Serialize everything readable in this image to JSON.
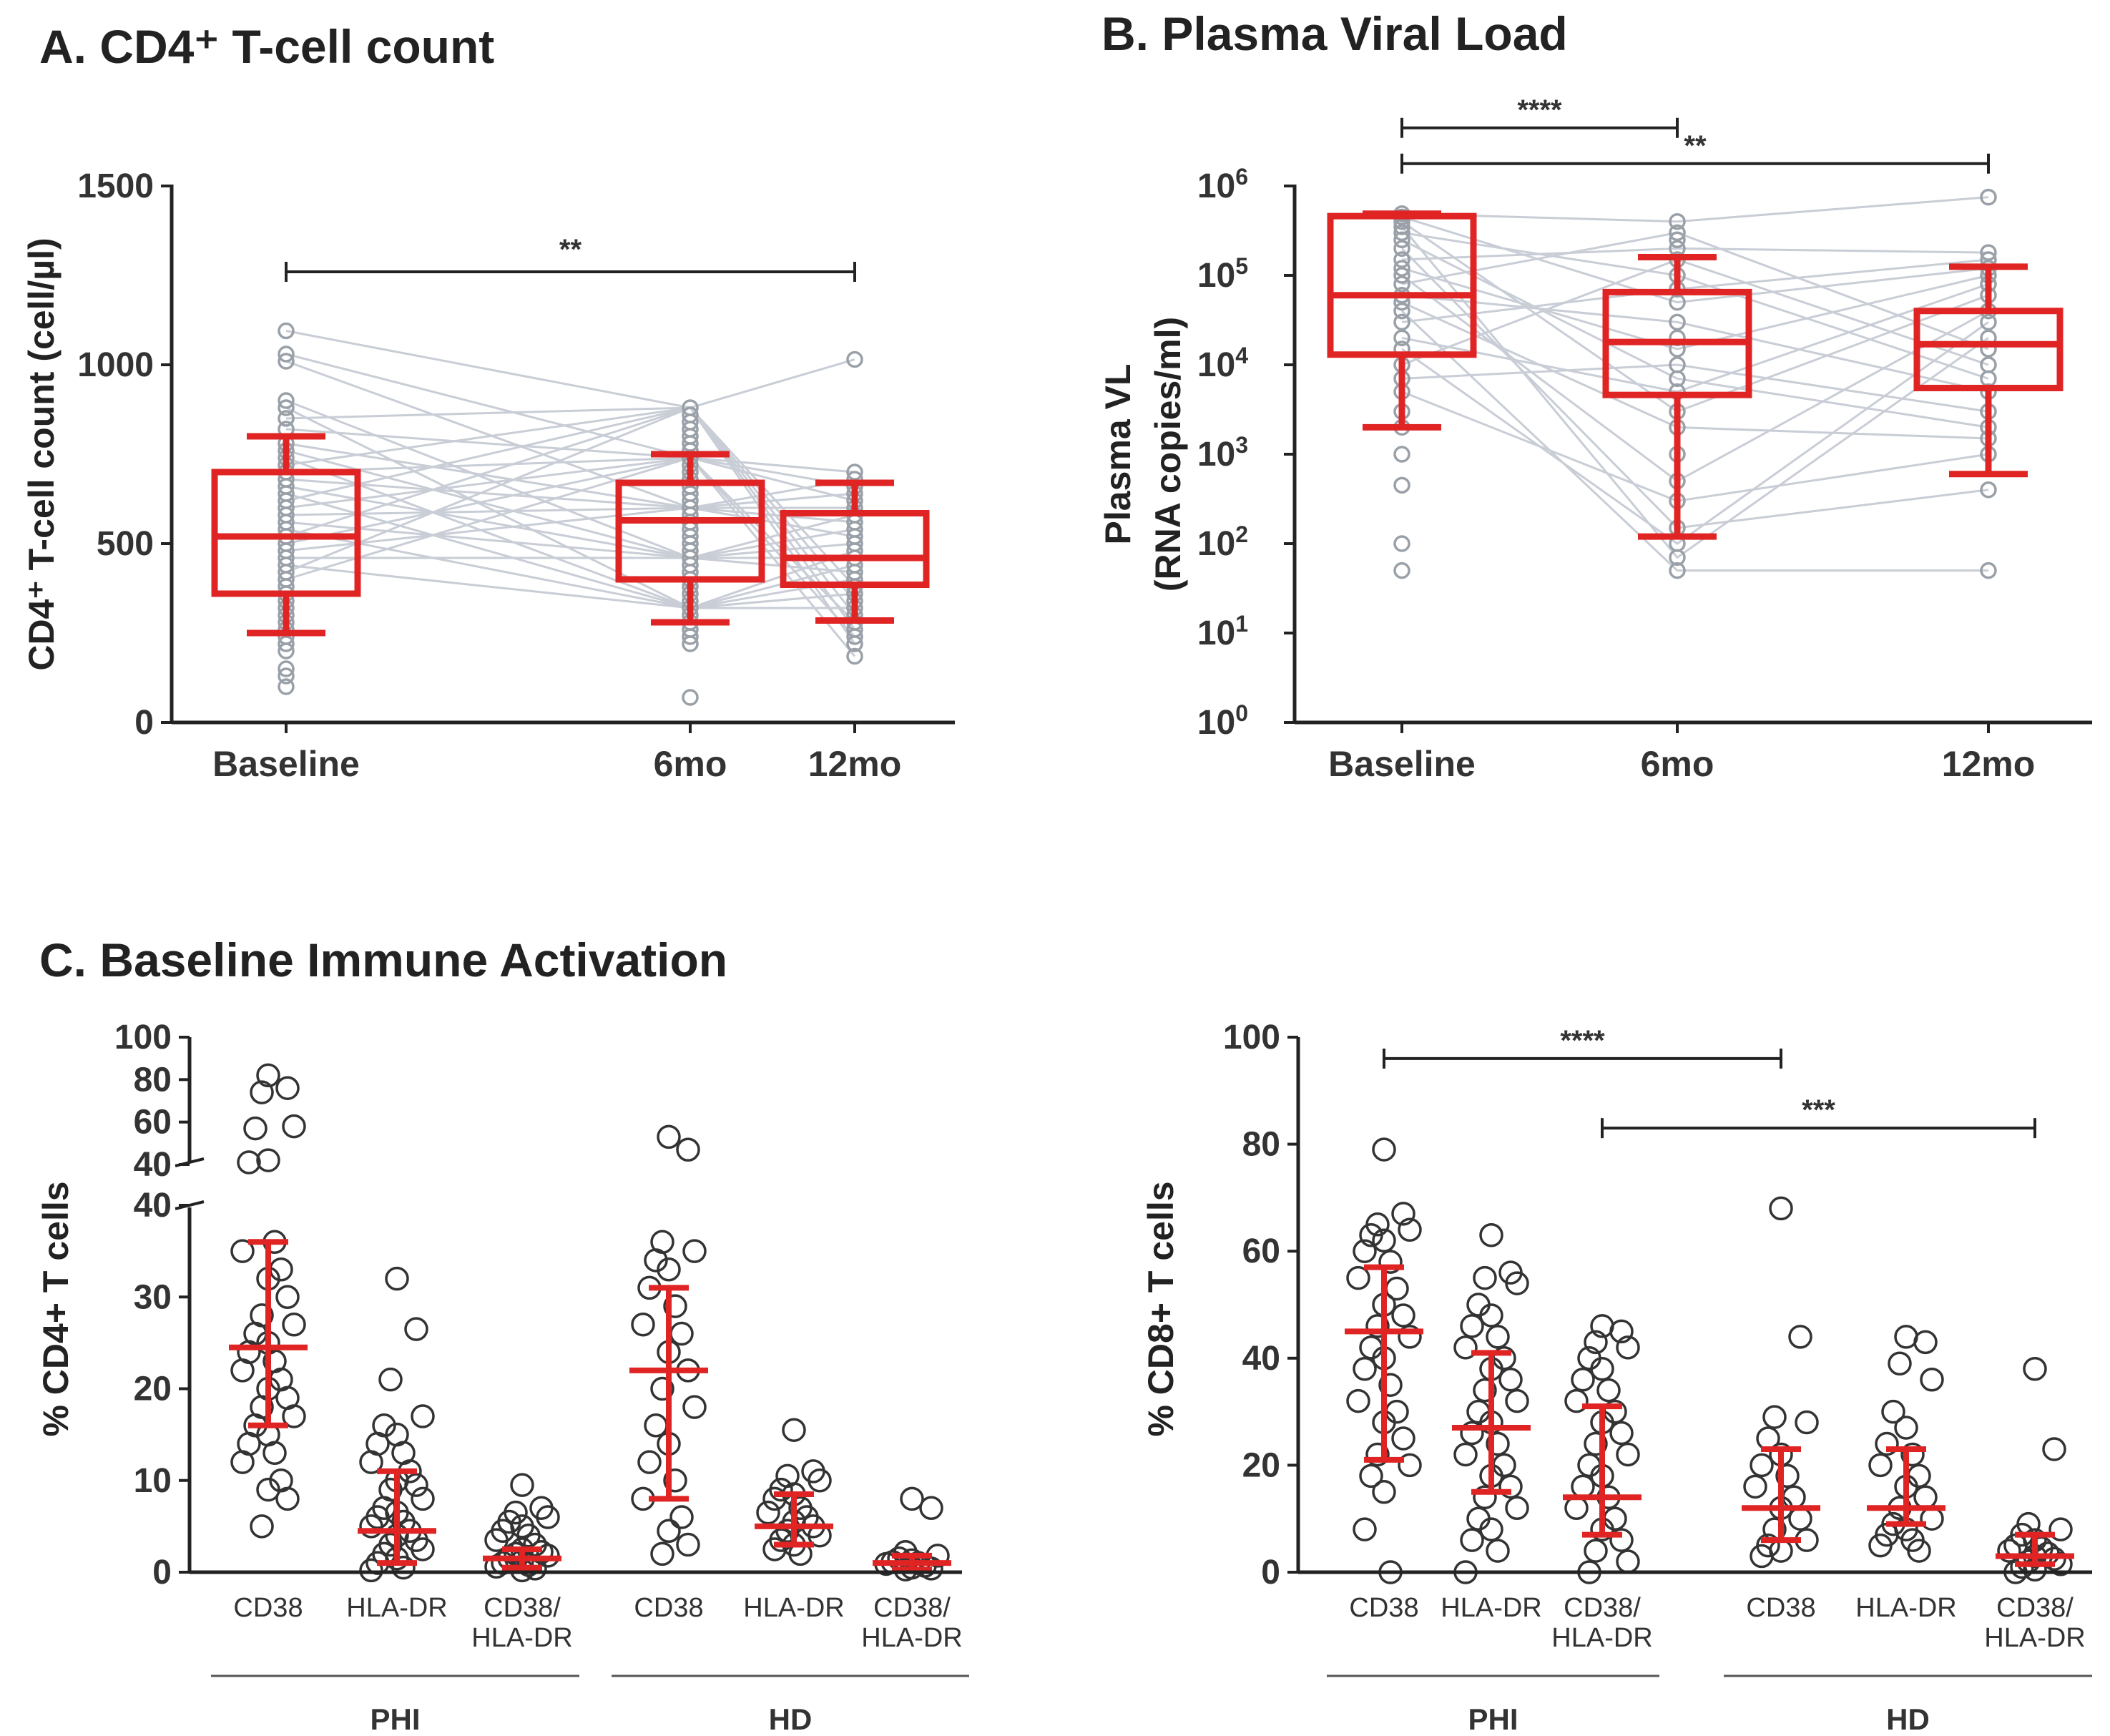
{
  "colors": {
    "box": "#e02424",
    "line": "#c8cdd6",
    "point": "#9aa0a8",
    "axis": "#222222",
    "hollow": "#333333"
  },
  "chart_data": [
    {
      "id": "A",
      "type": "box",
      "title": "A. CD4⁺ T-cell count",
      "ylabel": "CD4⁺ T-cell count (cell/µl)",
      "categories": [
        "Baseline",
        "6mo",
        "12mo"
      ],
      "yticks": [
        "0",
        "500",
        "1000",
        "1500"
      ],
      "ylim": [
        0,
        1500
      ],
      "boxes": [
        {
          "category": "Baseline",
          "whisker_low": 250,
          "q1": 360,
          "median": 520,
          "q3": 700,
          "whisker_high": 800
        },
        {
          "category": "6mo",
          "whisker_low": 280,
          "q1": 400,
          "median": 565,
          "q3": 670,
          "whisker_high": 750
        },
        {
          "category": "12mo",
          "whisker_low": 285,
          "q1": 385,
          "median": 460,
          "q3": 585,
          "whisker_high": 670
        }
      ],
      "points": {
        "Baseline": [
          1095,
          1030,
          1010,
          900,
          880,
          850,
          820,
          780,
          760,
          740,
          720,
          700,
          680,
          660,
          640,
          620,
          600,
          580,
          560,
          540,
          520,
          500,
          480,
          460,
          440,
          420,
          400,
          380,
          360,
          340,
          320,
          300,
          280,
          260,
          240,
          220,
          200,
          150,
          130,
          100
        ],
        "6mo": [
          880,
          860,
          840,
          820,
          800,
          780,
          760,
          740,
          720,
          700,
          680,
          660,
          640,
          620,
          600,
          580,
          560,
          540,
          520,
          500,
          480,
          460,
          440,
          420,
          400,
          380,
          360,
          340,
          320,
          300,
          280,
          260,
          240,
          220,
          70
        ],
        "12mo": [
          1015,
          700,
          680,
          660,
          640,
          620,
          600,
          580,
          560,
          540,
          520,
          500,
          480,
          460,
          440,
          420,
          400,
          380,
          360,
          340,
          320,
          300,
          280,
          260,
          240,
          220,
          185
        ]
      },
      "comparisons": [
        {
          "from": "Baseline",
          "to": "12mo",
          "label": "**",
          "level": 1260
        }
      ]
    },
    {
      "id": "B",
      "type": "box",
      "scale": "log",
      "title": "B. Plasma Viral Load",
      "ylabel": [
        "Plasma VL",
        "(RNA copies/ml)"
      ],
      "categories": [
        "Baseline",
        "6mo",
        "12mo"
      ],
      "yticks": [
        {
          "exp": 0,
          "base": "10",
          "sup": "0"
        },
        {
          "exp": 1,
          "base": "10",
          "sup": "1"
        },
        {
          "exp": 2,
          "base": "10",
          "sup": "2"
        },
        {
          "exp": 3,
          "base": "10",
          "sup": "3"
        },
        {
          "exp": 4,
          "base": "10",
          "sup": "4"
        },
        {
          "exp": 5,
          "base": "10",
          "sup": "5"
        },
        {
          "exp": 6,
          "base": "10",
          "sup": "6"
        }
      ],
      "ylim_log10": [
        0,
        6
      ],
      "boxes": [
        {
          "category": "Baseline",
          "whisker_low": 2000,
          "q1": 13000,
          "median": 60000,
          "q3": 460000,
          "whisker_high": 490000
        },
        {
          "category": "6mo",
          "whisker_low": 120,
          "q1": 4600,
          "median": 18000,
          "q3": 65000,
          "whisker_high": 160000
        },
        {
          "category": "12mo",
          "whisker_low": 600,
          "q1": 5500,
          "median": 17000,
          "q3": 40000,
          "whisker_high": 125000
        }
      ],
      "points": {
        "Baseline": [
          490000,
          450000,
          400000,
          350000,
          300000,
          250000,
          200000,
          150000,
          120000,
          100000,
          80000,
          60000,
          50000,
          40000,
          30000,
          20000,
          15000,
          10000,
          7000,
          5000,
          3000,
          2000,
          1000,
          450,
          100,
          50
        ],
        "6mo": [
          400000,
          300000,
          250000,
          200000,
          150000,
          100000,
          70000,
          50000,
          30000,
          20000,
          15000,
          10000,
          7000,
          5000,
          3000,
          2000,
          1000,
          500,
          300,
          150,
          100,
          70,
          50
        ],
        "12mo": [
          750000,
          180000,
          150000,
          120000,
          100000,
          80000,
          60000,
          40000,
          30000,
          20000,
          15000,
          10000,
          7000,
          5000,
          3000,
          2000,
          1500,
          1000,
          400,
          50
        ]
      },
      "comparisons": [
        {
          "from": "Baseline",
          "to": "6mo",
          "label": "****",
          "level_log10": 6.65
        },
        {
          "from": "Baseline",
          "to": "12mo",
          "label": "**",
          "level_log10": 6.25
        }
      ]
    },
    {
      "id": "C1",
      "type": "scatter",
      "title": "C. Baseline Immune Activation",
      "ylabel": "% CD4+ T cells",
      "categories": [
        "CD38",
        "HLA-DR",
        "CD38/\nHLA-DR",
        "CD38",
        "HLA-DR",
        "CD38/\nHLA-DR"
      ],
      "groups": [
        {
          "name": "PHI",
          "span": [
            0,
            2
          ]
        },
        {
          "name": "HD",
          "span": [
            3,
            5
          ]
        }
      ],
      "yticks_lower": [
        "0",
        "10",
        "20",
        "30",
        "40"
      ],
      "yticks_upper": [
        "40",
        "60",
        "80",
        "100"
      ],
      "ylim_lower": [
        0,
        40
      ],
      "ylim_upper": [
        40,
        100
      ],
      "summary": [
        {
          "median": 24.5,
          "low": 16,
          "high": 36
        },
        {
          "median": 4.5,
          "low": 1,
          "high": 11
        },
        {
          "median": 1.5,
          "low": 0.5,
          "high": 2.5
        },
        {
          "median": 22,
          "low": 8,
          "high": 31
        },
        {
          "median": 5,
          "low": 3,
          "high": 8.5
        },
        {
          "median": 1,
          "low": 0.3,
          "high": 1.8
        }
      ],
      "points": [
        [
          82,
          76,
          74,
          58,
          57,
          42,
          41,
          36,
          35,
          33,
          32,
          30,
          28,
          27,
          26,
          25,
          24,
          23,
          22,
          21,
          20,
          19,
          18,
          17,
          16,
          15,
          14,
          13,
          12,
          10,
          9,
          8,
          5
        ],
        [
          32,
          26.5,
          21,
          17,
          16,
          15,
          14,
          13,
          12,
          11,
          10,
          9.5,
          9,
          8,
          7,
          6.5,
          6,
          5.5,
          5,
          4.5,
          4,
          3.5,
          3,
          2.5,
          2,
          1.5,
          1,
          0.5,
          0.2
        ],
        [
          9.5,
          7,
          6.5,
          6,
          5.5,
          5,
          4.5,
          4,
          3.5,
          3,
          2.5,
          2.2,
          2,
          1.8,
          1.5,
          1.2,
          1,
          0.8,
          0.6,
          0.4,
          0.2
        ],
        [
          53,
          47,
          36,
          35,
          34,
          33,
          31,
          29,
          27,
          26,
          24,
          22,
          20,
          18,
          16,
          14,
          12,
          10,
          8,
          6,
          4.5,
          3,
          2
        ],
        [
          15.5,
          11,
          10.5,
          10,
          9,
          8.5,
          8,
          7,
          6.5,
          6,
          5.5,
          5,
          4.5,
          4,
          3.5,
          3,
          2.5,
          2
        ],
        [
          8,
          7,
          2.2,
          1.8,
          1.5,
          1.3,
          1.1,
          1,
          0.9,
          0.7,
          0.5,
          0.4,
          0.3
        ]
      ]
    },
    {
      "id": "C2",
      "type": "scatter",
      "title": "",
      "ylabel": "% CD8+ T cells",
      "categories": [
        "CD38",
        "HLA-DR",
        "CD38/\nHLA-DR",
        "CD38",
        "HLA-DR",
        "CD38/\nHLA-DR"
      ],
      "groups": [
        {
          "name": "PHI",
          "span": [
            0,
            2
          ]
        },
        {
          "name": "HD",
          "span": [
            3,
            5
          ]
        }
      ],
      "yticks": [
        "0",
        "20",
        "40",
        "60",
        "80",
        "100"
      ],
      "ylim": [
        0,
        100
      ],
      "summary": [
        {
          "median": 45,
          "low": 21,
          "high": 57
        },
        {
          "median": 27,
          "low": 15,
          "high": 41
        },
        {
          "median": 14,
          "low": 7,
          "high": 31
        },
        {
          "median": 12,
          "low": 6,
          "high": 23
        },
        {
          "median": 12,
          "low": 9,
          "high": 23
        },
        {
          "median": 3,
          "low": 1.5,
          "high": 7
        }
      ],
      "points": [
        [
          79,
          67,
          65,
          64,
          63,
          62,
          60,
          58,
          55,
          53,
          50,
          48,
          46,
          44,
          42,
          40,
          38,
          35,
          32,
          30,
          28,
          25,
          22,
          20,
          18,
          15,
          8,
          0
        ],
        [
          63,
          56,
          55,
          54,
          50,
          48,
          46,
          44,
          42,
          40,
          38,
          36,
          34,
          32,
          30,
          28,
          26,
          24,
          22,
          20,
          18,
          16,
          14,
          12,
          10,
          8,
          6,
          4,
          0
        ],
        [
          46,
          45,
          43,
          42,
          40,
          38,
          36,
          34,
          32,
          30,
          28,
          26,
          24,
          22,
          20,
          18,
          16,
          14,
          12,
          10,
          8,
          6,
          4,
          2,
          0
        ],
        [
          68,
          44,
          29,
          28,
          25,
          22,
          20,
          18,
          16,
          14,
          12,
          10,
          8,
          6,
          5,
          4,
          3
        ],
        [
          44,
          43,
          39,
          36,
          30,
          27,
          24,
          22,
          20,
          18,
          16,
          14,
          12,
          10,
          9,
          8,
          7,
          6,
          5,
          4
        ],
        [
          38,
          23,
          9,
          8,
          7,
          6,
          5,
          4.5,
          4,
          3.5,
          3,
          2.5,
          2,
          1.5,
          1,
          0.5,
          0
        ]
      ],
      "comparisons": [
        {
          "from": 0,
          "to": 3,
          "label": "****",
          "level": 96
        },
        {
          "from": 2,
          "to": 5,
          "label": "***",
          "level": 83
        }
      ]
    }
  ]
}
